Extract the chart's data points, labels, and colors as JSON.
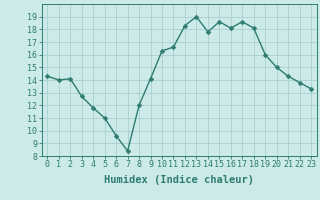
{
  "x": [
    0,
    1,
    2,
    3,
    4,
    5,
    6,
    7,
    8,
    9,
    10,
    11,
    12,
    13,
    14,
    15,
    16,
    17,
    18,
    19,
    20,
    21,
    22,
    23
  ],
  "y": [
    14.3,
    14.0,
    14.1,
    12.7,
    11.8,
    11.0,
    9.6,
    8.4,
    12.0,
    14.1,
    16.3,
    16.6,
    18.3,
    19.0,
    17.8,
    18.6,
    18.1,
    18.6,
    18.1,
    16.0,
    15.0,
    14.3,
    13.8,
    13.3
  ],
  "line_color": "#2e7d6e",
  "marker_color": "#2e7d6e",
  "bg_color": "#cceaea",
  "grid_color": "#aacece",
  "xlabel": "Humidex (Indice chaleur)",
  "ylim": [
    8,
    20
  ],
  "yticks": [
    8,
    9,
    10,
    11,
    12,
    13,
    14,
    15,
    16,
    17,
    18,
    19
  ],
  "xticks": [
    0,
    1,
    2,
    3,
    4,
    5,
    6,
    7,
    8,
    9,
    10,
    11,
    12,
    13,
    14,
    15,
    16,
    17,
    18,
    19,
    20,
    21,
    22,
    23
  ],
  "xtick_labels": [
    "0",
    "1",
    "2",
    "3",
    "4",
    "5",
    "6",
    "7",
    "8",
    "9",
    "10",
    "11",
    "12",
    "13",
    "14",
    "15",
    "16",
    "17",
    "18",
    "19",
    "20",
    "21",
    "22",
    "23"
  ],
  "tick_fontsize": 6,
  "xlabel_fontsize": 7.5,
  "linewidth": 1.0,
  "markersize": 2.5
}
